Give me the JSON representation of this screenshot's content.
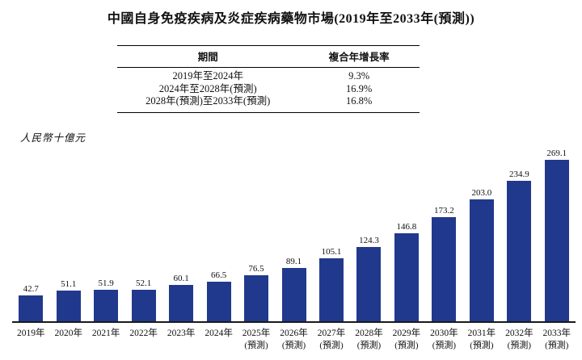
{
  "title": "中國自身免疫疾病及炎症疾病藥物市場(2019年至2033年(預測))",
  "cagr_table": {
    "headers": {
      "period": "期間",
      "cagr": "複合年增長率"
    },
    "rows": [
      {
        "period": "2019年至2024年",
        "cagr": "9.3%"
      },
      {
        "period": "2024年至2028年(預測)",
        "cagr": "16.9%"
      },
      {
        "period": "2028年(預測)至2033年(預測)",
        "cagr": "16.8%"
      }
    ]
  },
  "chart_data": {
    "type": "bar",
    "title": "中國自身免疫疾病及炎症疾病藥物市場(2019年至2033年(預測))",
    "ylabel": "人民幣十億元",
    "xlabel": "",
    "categories": [
      "2019年",
      "2020年",
      "2021年",
      "2022年",
      "2023年",
      "2024年",
      "2025年",
      "2026年",
      "2027年",
      "2028年",
      "2029年",
      "2030年",
      "2031年",
      "2032年",
      "2033年"
    ],
    "category_suffixes": [
      "",
      "",
      "",
      "",
      "",
      "",
      "(預測)",
      "(預測)",
      "(預測)",
      "(預測)",
      "(預測)",
      "(預測)",
      "(預測)",
      "(預測)",
      "(預測)"
    ],
    "values": [
      42.7,
      51.1,
      51.9,
      52.1,
      60.1,
      66.5,
      76.5,
      89.1,
      105.1,
      124.3,
      146.8,
      173.2,
      203.0,
      234.9,
      269.1
    ],
    "value_labels": [
      "42.7",
      "51.1",
      "51.9",
      "52.1",
      "60.1",
      "66.5",
      "76.5",
      "89.1",
      "105.1",
      "124.3",
      "146.8",
      "173.2",
      "203.0",
      "234.9",
      "269.1"
    ],
    "ylim": [
      0,
      280
    ],
    "grid": false,
    "legend_position": "none",
    "bar_color": "#21398D",
    "axis_color": "#1a1a1a"
  }
}
